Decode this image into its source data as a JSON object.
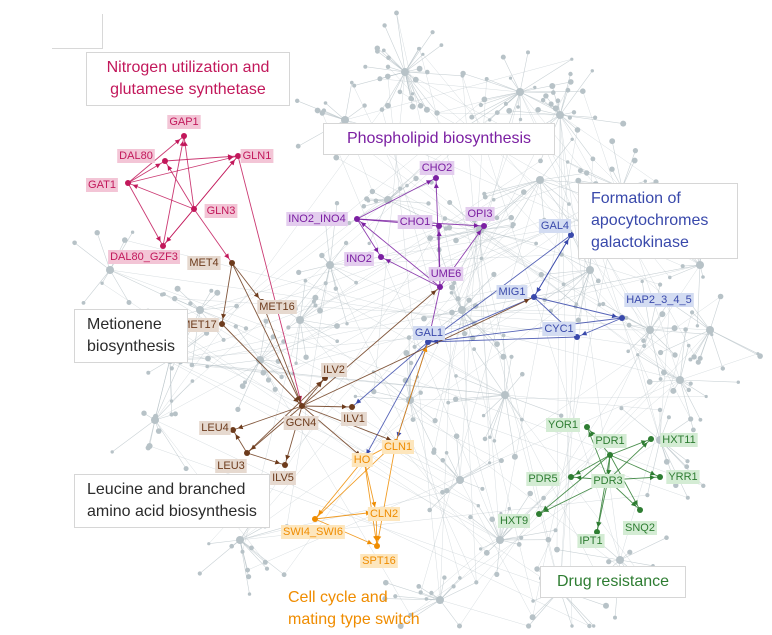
{
  "groups": {
    "nitrogen": [
      "Nitrogen utilization and",
      "glutamese synthetase"
    ],
    "phospholipid": [
      "Phospholipid biosynthesis"
    ],
    "cytochromes": [
      "Formation of",
      "apocytochromes",
      "galactokinase"
    ],
    "metionene": [
      "Metionene",
      "biosynthesis"
    ],
    "leucine": [
      "Leucine and branched",
      "amino acid biosynthesis"
    ],
    "cellcycle": [
      "Cell cycle and",
      "mating type switch"
    ],
    "drug": [
      "Drug resistance"
    ]
  },
  "colors": {
    "nitrogen": "#c2185b",
    "nitrogen_bg": "#f3c5d6",
    "phospholipid": "#7b1fa2",
    "phospholipid_bg": "#e3cdee",
    "cytochromes": "#3949ab",
    "cytochromes_bg": "#d3dcf2",
    "leucine": "#6d3b1c",
    "leucine_bg": "#e6d9cf",
    "cellcycle": "#ef8c00",
    "cellcycle_bg": "#fde6bd",
    "drug": "#2e7d32",
    "drug_bg": "#d4ecd4",
    "background_net": "#b7c2c7"
  },
  "nodes": [
    {
      "id": "GAP1",
      "cluster": "nitrogen"
    },
    {
      "id": "DAL80",
      "cluster": "nitrogen"
    },
    {
      "id": "GLN1",
      "cluster": "nitrogen"
    },
    {
      "id": "GAT1",
      "cluster": "nitrogen"
    },
    {
      "id": "GLN3",
      "cluster": "nitrogen"
    },
    {
      "id": "DAL80_GZF3",
      "cluster": "nitrogen"
    },
    {
      "id": "CHO2",
      "cluster": "phospholipid"
    },
    {
      "id": "INO2_INO4",
      "cluster": "phospholipid"
    },
    {
      "id": "CHO1",
      "cluster": "phospholipid"
    },
    {
      "id": "OPI3",
      "cluster": "phospholipid"
    },
    {
      "id": "INO2",
      "cluster": "phospholipid"
    },
    {
      "id": "UME6",
      "cluster": "phospholipid"
    },
    {
      "id": "GAL4",
      "cluster": "cytochromes"
    },
    {
      "id": "MIG1",
      "cluster": "cytochromes"
    },
    {
      "id": "HAP2_3_4_5",
      "cluster": "cytochromes"
    },
    {
      "id": "GAL1",
      "cluster": "cytochromes"
    },
    {
      "id": "CYC1",
      "cluster": "cytochromes"
    },
    {
      "id": "MET4",
      "cluster": "leucine"
    },
    {
      "id": "MET16",
      "cluster": "leucine"
    },
    {
      "id": "MET17",
      "cluster": "leucine"
    },
    {
      "id": "ILV2",
      "cluster": "leucine"
    },
    {
      "id": "GCN4",
      "cluster": "leucine"
    },
    {
      "id": "ILV1",
      "cluster": "leucine"
    },
    {
      "id": "LEU4",
      "cluster": "leucine"
    },
    {
      "id": "LEU3",
      "cluster": "leucine"
    },
    {
      "id": "ILV5",
      "cluster": "leucine"
    },
    {
      "id": "HO",
      "cluster": "cellcycle"
    },
    {
      "id": "CLN1",
      "cluster": "cellcycle"
    },
    {
      "id": "CLN2",
      "cluster": "cellcycle"
    },
    {
      "id": "SWI4_SWI6",
      "cluster": "cellcycle"
    },
    {
      "id": "SPT16",
      "cluster": "cellcycle"
    },
    {
      "id": "YOR1",
      "cluster": "drug"
    },
    {
      "id": "PDR1",
      "cluster": "drug"
    },
    {
      "id": "HXT11",
      "cluster": "drug"
    },
    {
      "id": "PDR5",
      "cluster": "drug"
    },
    {
      "id": "PDR3",
      "cluster": "drug"
    },
    {
      "id": "YRR1",
      "cluster": "drug"
    },
    {
      "id": "HXT9",
      "cluster": "drug"
    },
    {
      "id": "IPT1",
      "cluster": "drug"
    },
    {
      "id": "SNQ2",
      "cluster": "drug"
    }
  ],
  "edges": [
    [
      "GLN3",
      "GAP1"
    ],
    [
      "GLN3",
      "DAL80"
    ],
    [
      "GLN3",
      "GLN1"
    ],
    [
      "GLN3",
      "GAT1"
    ],
    [
      "GLN3",
      "DAL80_GZF3"
    ],
    [
      "GAT1",
      "GAP1"
    ],
    [
      "GAT1",
      "DAL80"
    ],
    [
      "GAT1",
      "GLN1"
    ],
    [
      "GAT1",
      "DAL80_GZF3"
    ],
    [
      "DAL80_GZF3",
      "GAP1"
    ],
    [
      "DAL80_GZF3",
      "GLN1"
    ],
    [
      "DAL80",
      "GLN1"
    ],
    [
      "GLN3",
      "MET4"
    ],
    [
      "GLN1",
      "GCN4"
    ],
    [
      "UME6",
      "INO2_INO4"
    ],
    [
      "UME6",
      "CHO2"
    ],
    [
      "UME6",
      "CHO1"
    ],
    [
      "UME6",
      "OPI3"
    ],
    [
      "UME6",
      "INO2"
    ],
    [
      "INO2_INO4",
      "CHO2"
    ],
    [
      "INO2_INO4",
      "CHO1"
    ],
    [
      "INO2_INO4",
      "OPI3"
    ],
    [
      "INO2_INO4",
      "INO2"
    ],
    [
      "UME6",
      "GAL1"
    ],
    [
      "MIG1",
      "GAL4"
    ],
    [
      "MIG1",
      "GAL1"
    ],
    [
      "MIG1",
      "HAP2_3_4_5"
    ],
    [
      "MIG1",
      "CYC1"
    ],
    [
      "GAL4",
      "GAL1"
    ],
    [
      "GAL4",
      "MIG1"
    ],
    [
      "HAP2_3_4_5",
      "CYC1"
    ],
    [
      "HAP2_3_4_5",
      "GAL1"
    ],
    [
      "CYC1",
      "GAL1"
    ],
    [
      "GAL1",
      "ILV1"
    ],
    [
      "GAL1",
      "HO"
    ],
    [
      "GAL1",
      "CLN1"
    ],
    [
      "MET4",
      "MET16"
    ],
    [
      "MET4",
      "MET17"
    ],
    [
      "MET4",
      "GCN4"
    ],
    [
      "MET16",
      "GCN4"
    ],
    [
      "MET17",
      "GCN4"
    ],
    [
      "GCN4",
      "ILV2"
    ],
    [
      "GCN4",
      "ILV1"
    ],
    [
      "GCN4",
      "LEU4"
    ],
    [
      "GCN4",
      "LEU3"
    ],
    [
      "GCN4",
      "ILV5"
    ],
    [
      "LEU3",
      "LEU4"
    ],
    [
      "LEU3",
      "ILV5"
    ],
    [
      "LEU3",
      "ILV2"
    ],
    [
      "GCN4",
      "HO"
    ],
    [
      "GCN4",
      "UME6"
    ],
    [
      "GCN4",
      "MIG1"
    ],
    [
      "GCN4",
      "CLN1"
    ],
    [
      "HO",
      "CLN1"
    ],
    [
      "HO",
      "CLN2"
    ],
    [
      "HO",
      "SWI4_SWI6"
    ],
    [
      "HO",
      "SPT16"
    ],
    [
      "SWI4_SWI6",
      "CLN1"
    ],
    [
      "SWI4_SWI6",
      "CLN2"
    ],
    [
      "SWI4_SWI6",
      "SPT16"
    ],
    [
      "CLN2",
      "SPT16"
    ],
    [
      "CLN1",
      "SPT16"
    ],
    [
      "CLN1",
      "GAL1"
    ],
    [
      "PDR1",
      "YOR1"
    ],
    [
      "PDR1",
      "HXT11"
    ],
    [
      "PDR1",
      "PDR5"
    ],
    [
      "PDR1",
      "YRR1"
    ],
    [
      "PDR1",
      "HXT9"
    ],
    [
      "PDR1",
      "IPT1"
    ],
    [
      "PDR1",
      "SNQ2"
    ],
    [
      "PDR3",
      "YOR1"
    ],
    [
      "PDR3",
      "HXT11"
    ],
    [
      "PDR3",
      "PDR5"
    ],
    [
      "PDR3",
      "YRR1"
    ],
    [
      "PDR3",
      "HXT9"
    ],
    [
      "PDR3",
      "IPT1"
    ],
    [
      "PDR3",
      "SNQ2"
    ],
    [
      "PDR1",
      "PDR3"
    ]
  ]
}
